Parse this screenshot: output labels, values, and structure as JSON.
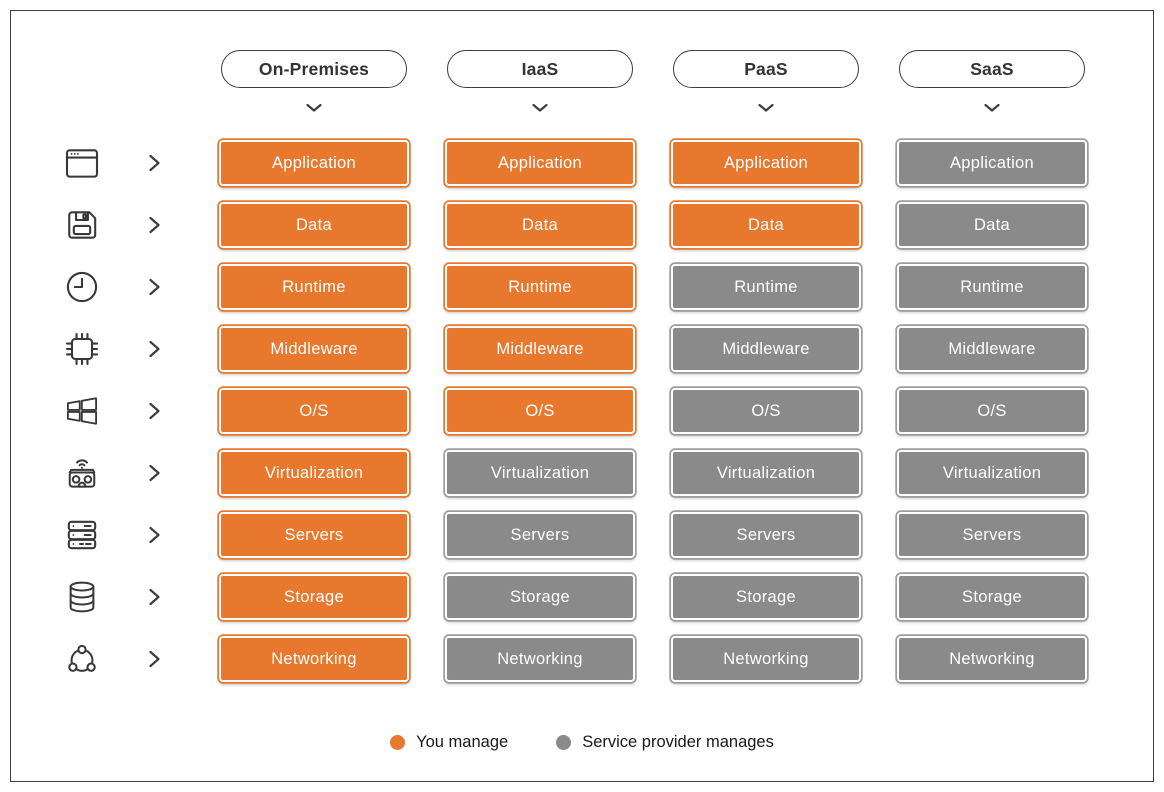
{
  "columns": [
    {
      "id": "on-premises",
      "label": "On-Premises",
      "owners": [
        "you",
        "you",
        "you",
        "you",
        "you",
        "you",
        "you",
        "you",
        "you"
      ]
    },
    {
      "id": "iaas",
      "label": "IaaS",
      "owners": [
        "you",
        "you",
        "you",
        "you",
        "you",
        "provider",
        "provider",
        "provider",
        "provider"
      ]
    },
    {
      "id": "paas",
      "label": "PaaS",
      "owners": [
        "you",
        "you",
        "provider",
        "provider",
        "provider",
        "provider",
        "provider",
        "provider",
        "provider"
      ]
    },
    {
      "id": "saas",
      "label": "SaaS",
      "owners": [
        "provider",
        "provider",
        "provider",
        "provider",
        "provider",
        "provider",
        "provider",
        "provider",
        "provider"
      ]
    }
  ],
  "rows": [
    {
      "id": "application",
      "label": "Application",
      "icon": "browser-window-icon"
    },
    {
      "id": "data",
      "label": "Data",
      "icon": "floppy-disk-icon"
    },
    {
      "id": "runtime",
      "label": "Runtime",
      "icon": "clock-icon"
    },
    {
      "id": "middleware",
      "label": "Middleware",
      "icon": "cpu-chip-icon"
    },
    {
      "id": "os",
      "label": "O/S",
      "icon": "windows-logo-icon"
    },
    {
      "id": "virtualization",
      "label": "Virtualization",
      "icon": "vr-headset-icon"
    },
    {
      "id": "servers",
      "label": "Servers",
      "icon": "server-rack-icon"
    },
    {
      "id": "storage",
      "label": "Storage",
      "icon": "database-icon"
    },
    {
      "id": "networking",
      "label": "Networking",
      "icon": "network-nodes-icon"
    }
  ],
  "legend": [
    {
      "owner": "you",
      "label": "You manage"
    },
    {
      "owner": "provider",
      "label": "Service provider manages"
    }
  ],
  "colors": {
    "you": "#E7782D",
    "provider": "#8A8A8A",
    "outline": "#3E3E3E"
  }
}
